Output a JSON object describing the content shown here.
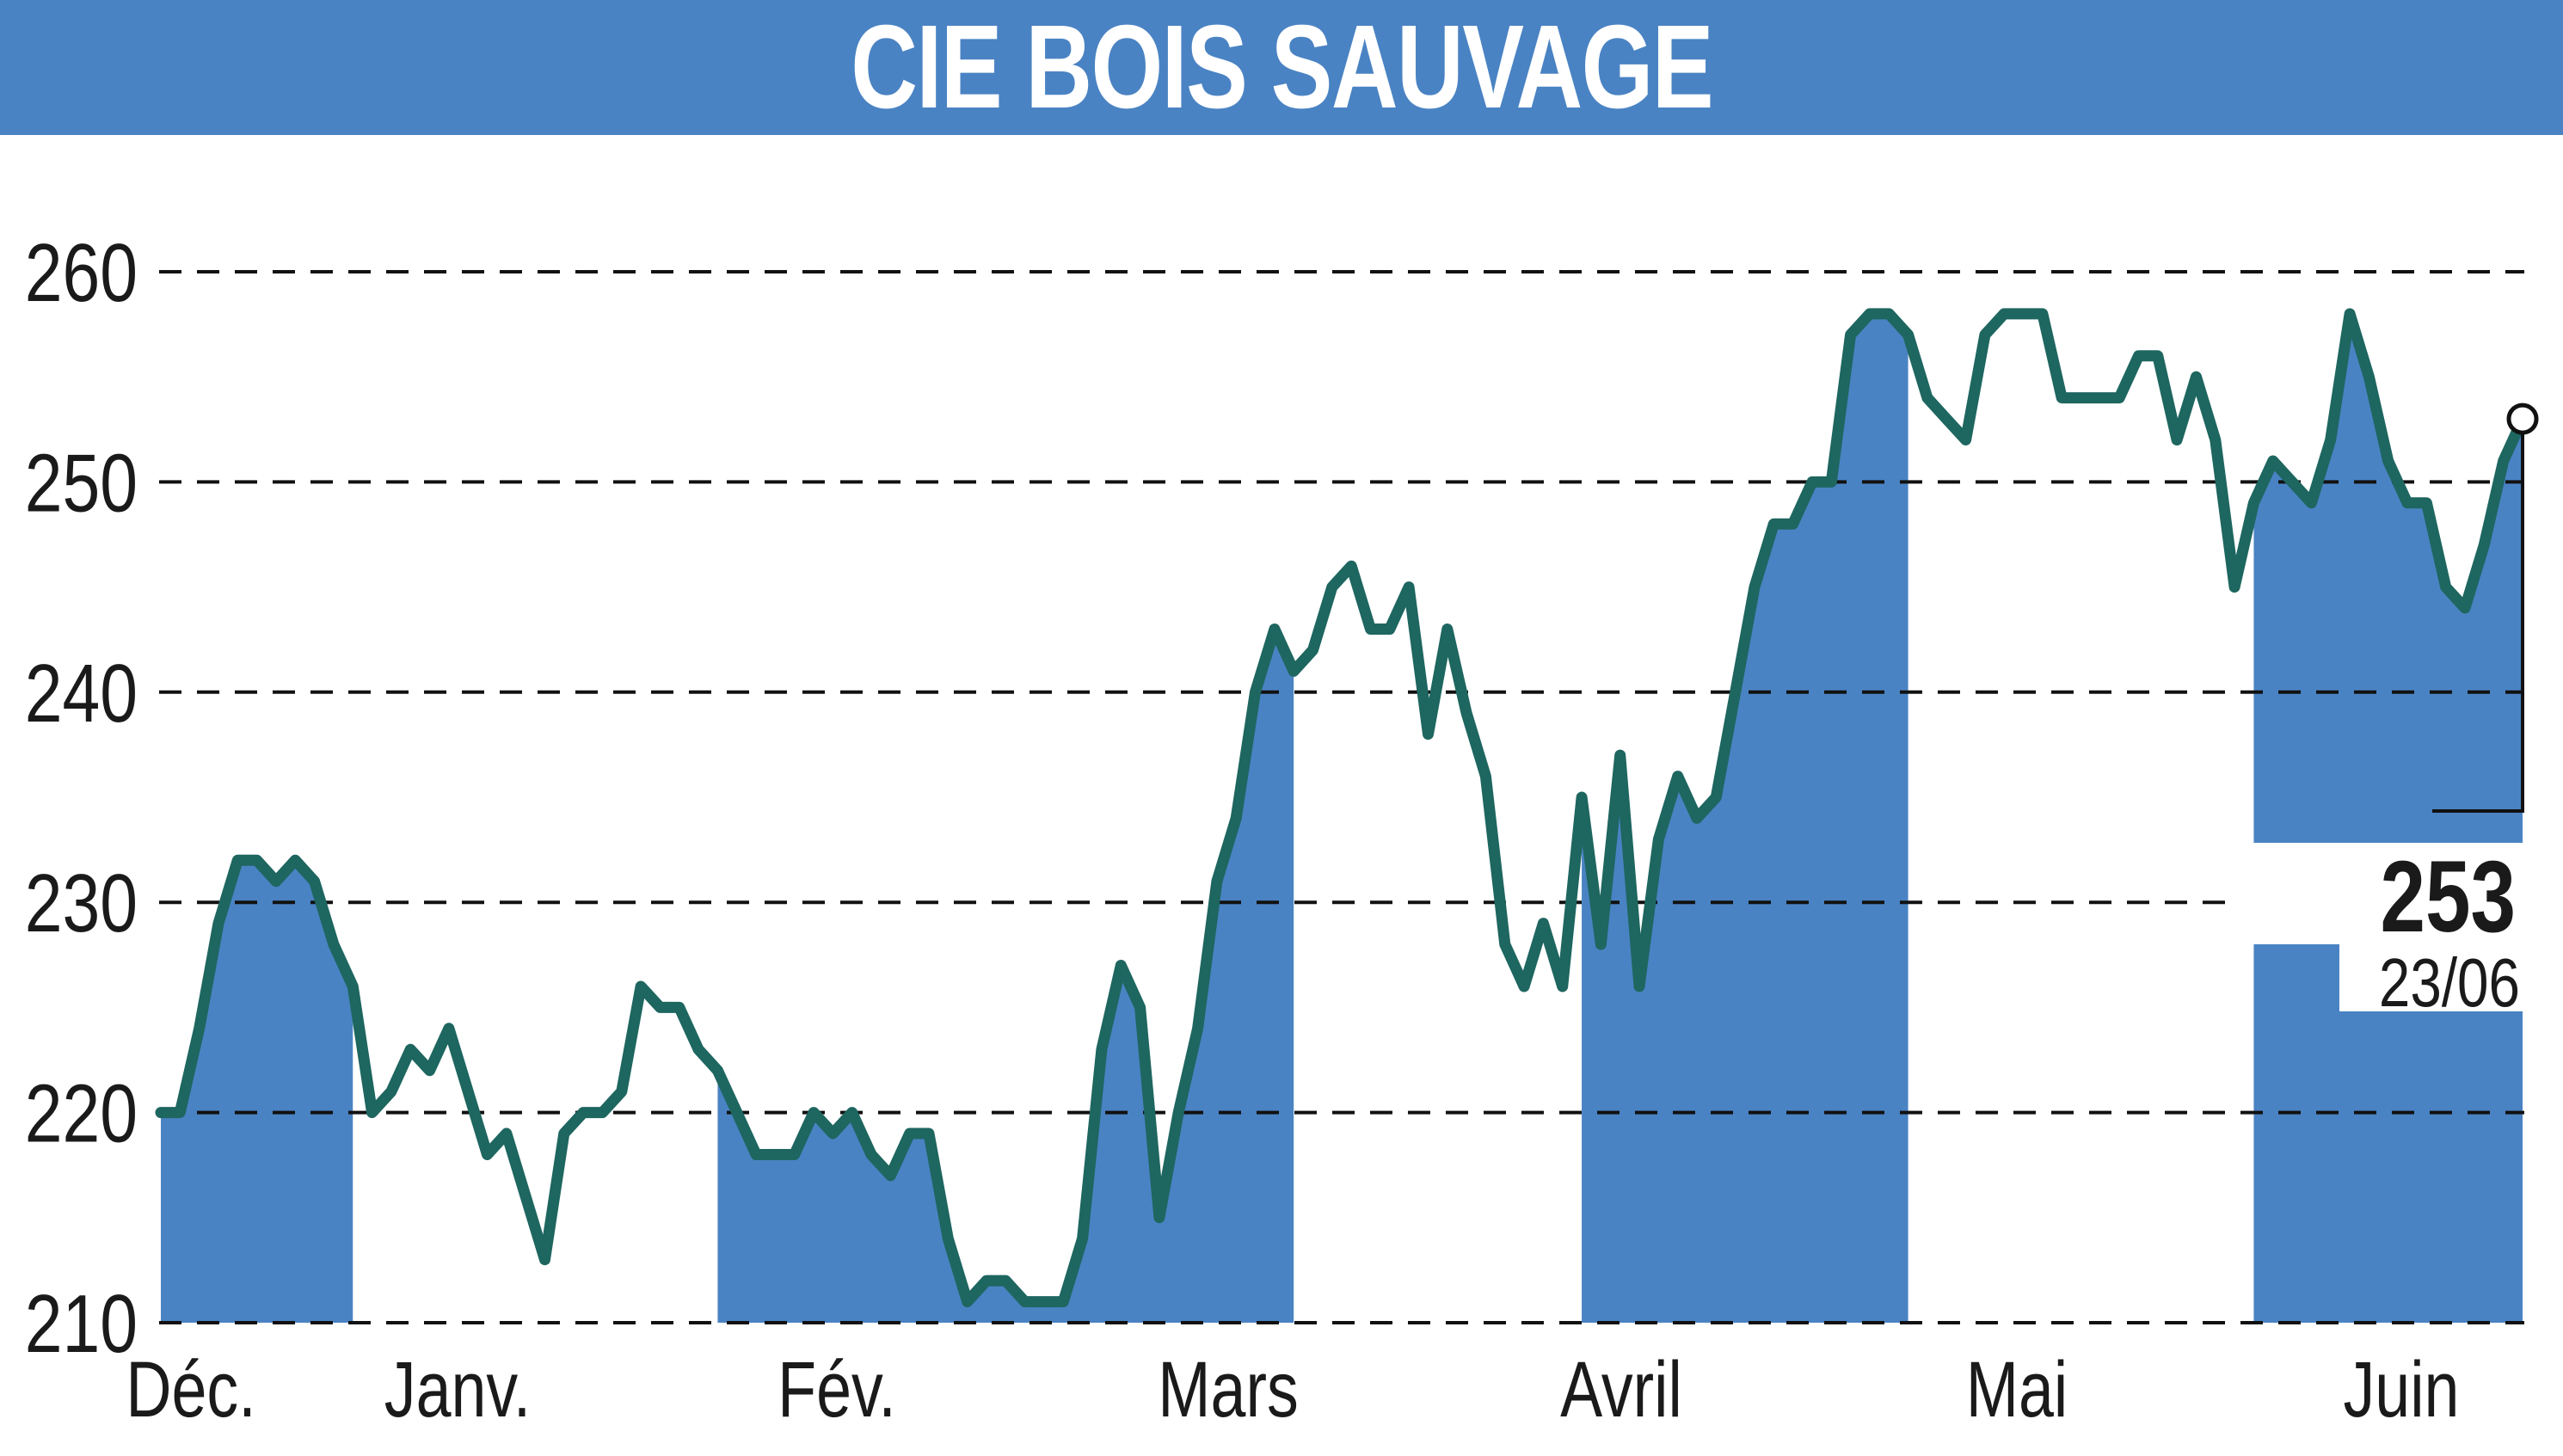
{
  "header": {
    "title": "CIE BOIS SAUVAGE"
  },
  "colors": {
    "band": "#4a83c3",
    "line": "#1e6660",
    "grid": "#111111",
    "text": "#1a1a1a"
  },
  "chart_data": {
    "type": "line",
    "title": "CIE BOIS SAUVAGE",
    "xlabel": "",
    "ylabel": "",
    "ylim": [
      210,
      260
    ],
    "yticks": [
      210,
      220,
      230,
      240,
      250,
      260
    ],
    "grid": "horizontal-dashed",
    "months": [
      "Déc.",
      "Janv.",
      "Fév.",
      "Mars",
      "Avril",
      "Mai",
      "Juin"
    ],
    "month_index": [
      0,
      1,
      2,
      3,
      4,
      5,
      6
    ],
    "shaded_months": [
      "Déc.",
      "Fév.",
      "Avril",
      "Juin"
    ],
    "series": [
      {
        "values": [
          220,
          220,
          224,
          229,
          232,
          232,
          231,
          232,
          231,
          228,
          226,
          220,
          221,
          223,
          222,
          224,
          221,
          218,
          219,
          216,
          213,
          219,
          220,
          220,
          221,
          226,
          225,
          225,
          223,
          222,
          220,
          218,
          218,
          218,
          220,
          219,
          220,
          218,
          217,
          219,
          219,
          214,
          211,
          212,
          212,
          211,
          211,
          211,
          214,
          223,
          227,
          225,
          215,
          220,
          224,
          231,
          234,
          240,
          243,
          241,
          242,
          245,
          246,
          243,
          243,
          245,
          238,
          243,
          239,
          236,
          228,
          226,
          229,
          226,
          235,
          228,
          237,
          226,
          233,
          236,
          234,
          235,
          240,
          245,
          248,
          248,
          250,
          250,
          257,
          258,
          258,
          257,
          254,
          253,
          252,
          257,
          258,
          258,
          258,
          254,
          254,
          254,
          254,
          256,
          256,
          252,
          255,
          252,
          245,
          249,
          251,
          250,
          249,
          252,
          258,
          255,
          251,
          249,
          249,
          245,
          244,
          247,
          251,
          253
        ]
      }
    ],
    "last_value": {
      "value": "253",
      "date": "23/06"
    }
  }
}
